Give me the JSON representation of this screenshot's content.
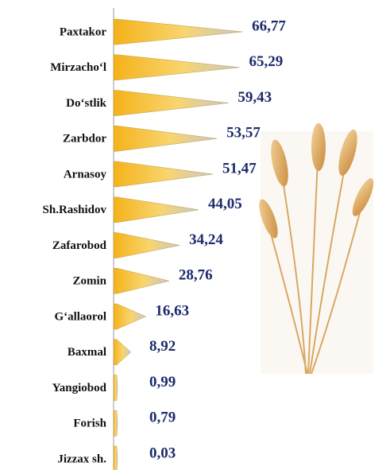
{
  "chart_data": {
    "type": "bar",
    "orientation": "horizontal",
    "categories": [
      "Paxtakor",
      "Mirzacho‘l",
      "Do‘stlik",
      "Zarbdor",
      "Arnasoy",
      "Sh.Rashidov",
      "Zafarobod",
      "Zomin",
      "G‘allaorol",
      "Baxmal",
      "Yangiobod",
      "Forish",
      "Jizzax sh."
    ],
    "values": [
      66.77,
      65.29,
      59.43,
      53.57,
      51.47,
      44.05,
      34.24,
      28.76,
      16.63,
      8.92,
      0.99,
      0.79,
      0.03
    ],
    "value_labels": [
      "66,77",
      "65,29",
      "59,43",
      "53,57",
      "51,47",
      "44,05",
      "34,24",
      "28,76",
      "16,63",
      "8,92",
      "0,99",
      "0,79",
      "0,03"
    ],
    "color": "#f5b21a",
    "xlim": [
      0,
      70
    ]
  }
}
